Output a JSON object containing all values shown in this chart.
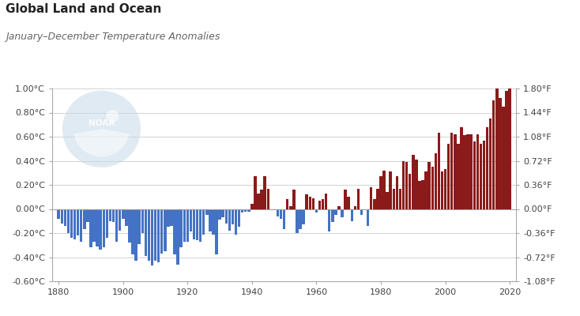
{
  "title": "Global Land and Ocean",
  "subtitle": "January–December Temperature Anomalies",
  "years": [
    1880,
    1881,
    1882,
    1883,
    1884,
    1885,
    1886,
    1887,
    1888,
    1889,
    1890,
    1891,
    1892,
    1893,
    1894,
    1895,
    1896,
    1897,
    1898,
    1899,
    1900,
    1901,
    1902,
    1903,
    1904,
    1905,
    1906,
    1907,
    1908,
    1909,
    1910,
    1911,
    1912,
    1913,
    1914,
    1915,
    1916,
    1917,
    1918,
    1919,
    1920,
    1921,
    1922,
    1923,
    1924,
    1925,
    1926,
    1927,
    1928,
    1929,
    1930,
    1931,
    1932,
    1933,
    1934,
    1935,
    1936,
    1937,
    1938,
    1939,
    1940,
    1941,
    1942,
    1943,
    1944,
    1945,
    1946,
    1947,
    1948,
    1949,
    1950,
    1951,
    1952,
    1953,
    1954,
    1955,
    1956,
    1957,
    1958,
    1959,
    1960,
    1961,
    1962,
    1963,
    1964,
    1965,
    1966,
    1967,
    1968,
    1969,
    1970,
    1971,
    1972,
    1973,
    1974,
    1975,
    1976,
    1977,
    1978,
    1979,
    1980,
    1981,
    1982,
    1983,
    1984,
    1985,
    1986,
    1987,
    1988,
    1989,
    1990,
    1991,
    1992,
    1993,
    1994,
    1995,
    1996,
    1997,
    1998,
    1999,
    2000,
    2001,
    2002,
    2003,
    2004,
    2005,
    2006,
    2007,
    2008,
    2009,
    2010,
    2011,
    2012,
    2013,
    2014,
    2015,
    2016,
    2017,
    2018,
    2019,
    2020
  ],
  "anomalies": [
    -0.08,
    -0.12,
    -0.14,
    -0.2,
    -0.24,
    -0.25,
    -0.22,
    -0.27,
    -0.17,
    -0.11,
    -0.32,
    -0.27,
    -0.31,
    -0.34,
    -0.32,
    -0.24,
    -0.1,
    -0.11,
    -0.27,
    -0.18,
    -0.08,
    -0.14,
    -0.28,
    -0.38,
    -0.43,
    -0.29,
    -0.2,
    -0.39,
    -0.43,
    -0.47,
    -0.43,
    -0.44,
    -0.37,
    -0.35,
    -0.15,
    -0.14,
    -0.38,
    -0.46,
    -0.32,
    -0.27,
    -0.27,
    -0.19,
    -0.25,
    -0.26,
    -0.27,
    -0.21,
    -0.05,
    -0.19,
    -0.21,
    -0.38,
    -0.09,
    -0.07,
    -0.12,
    -0.18,
    -0.13,
    -0.21,
    -0.15,
    -0.03,
    -0.02,
    -0.02,
    0.04,
    0.27,
    0.13,
    0.16,
    0.27,
    0.17,
    -0.01,
    -0.01,
    -0.06,
    -0.08,
    -0.17,
    0.08,
    0.02,
    0.16,
    -0.2,
    -0.17,
    -0.13,
    0.12,
    0.1,
    0.09,
    -0.03,
    0.07,
    0.08,
    0.13,
    -0.19,
    -0.11,
    -0.05,
    0.02,
    -0.07,
    0.16,
    0.1,
    -0.1,
    0.02,
    0.17,
    -0.05,
    -0.01,
    -0.14,
    0.18,
    0.08,
    0.17,
    0.27,
    0.32,
    0.14,
    0.31,
    0.17,
    0.27,
    0.17,
    0.4,
    0.39,
    0.29,
    0.45,
    0.41,
    0.23,
    0.24,
    0.31,
    0.39,
    0.35,
    0.46,
    0.63,
    0.31,
    0.33,
    0.54,
    0.63,
    0.62,
    0.54,
    0.68,
    0.61,
    0.62,
    0.62,
    0.56,
    0.62,
    0.54,
    0.57,
    0.68,
    0.75,
    0.9,
    1.01,
    0.92,
    0.85,
    0.98,
    1.02
  ],
  "ylim_left": [
    -0.6,
    1.0
  ],
  "ylim_right": [
    -1.08,
    1.8
  ],
  "yticks_left": [
    -0.6,
    -0.4,
    -0.2,
    0.0,
    0.2,
    0.4,
    0.6,
    0.8,
    1.0
  ],
  "ytick_labels_left": [
    "-0.60°C",
    "-0.40°C",
    "-0.20°C",
    "0.00°C",
    "0.20°C",
    "0.40°C",
    "0.60°C",
    "0.80°C",
    "1.00°C"
  ],
  "yticks_right": [
    -1.08,
    -0.72,
    -0.36,
    0.0,
    0.36,
    0.72,
    1.08,
    1.44,
    1.8
  ],
  "ytick_labels_right": [
    "-1.08°F",
    "-0.72°F",
    "-0.36°F",
    "0.00°F",
    "0.36°F",
    "0.72°F",
    "1.08°F",
    "1.44°F",
    "1.80°F"
  ],
  "xlim": [
    1878,
    2022
  ],
  "xticks": [
    1880,
    1900,
    1920,
    1940,
    1960,
    1980,
    2000,
    2020
  ],
  "color_positive": "#8B1A1A",
  "color_negative": "#4472C4",
  "bg_color": "#FFFFFF",
  "plot_bg_color": "#FFFFFF",
  "grid_color": "#CCCCCC",
  "title_fontsize": 11,
  "subtitle_fontsize": 9,
  "tick_fontsize": 8,
  "noaa_logo_color": "#C5D9E8"
}
